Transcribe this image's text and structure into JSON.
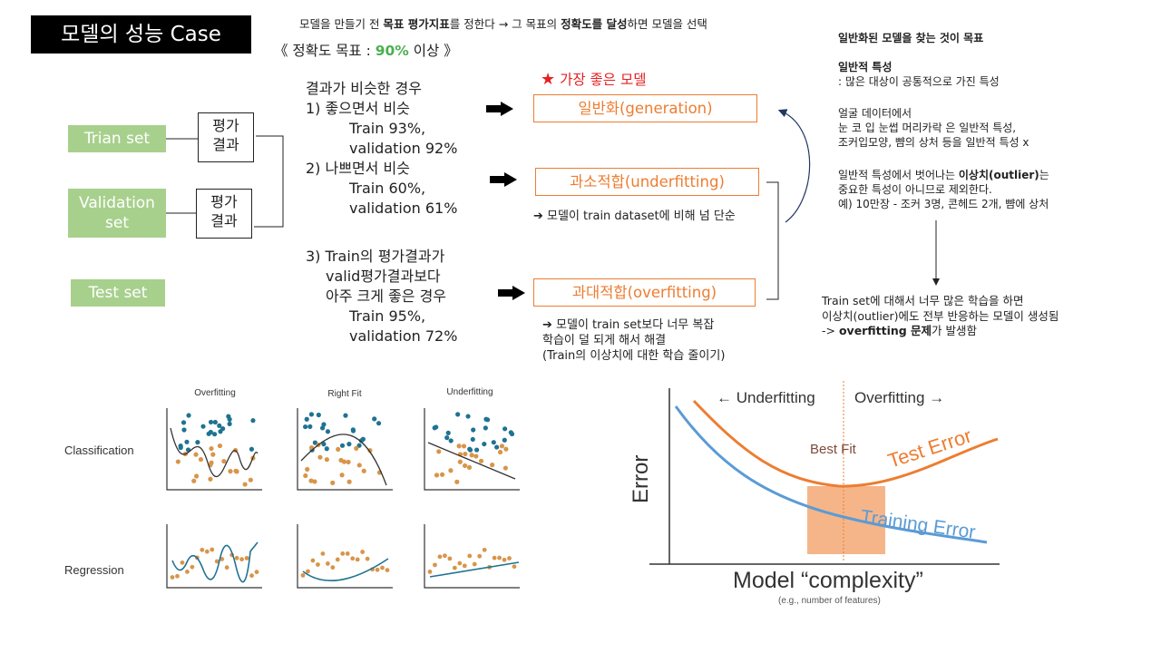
{
  "title": "모델의 성능 Case",
  "rule": {
    "p1": "모델을 만들기 전 ",
    "b1": "목표 평가지표",
    "p2": "를 정한다 → 그 목표의 ",
    "b2": "정확도를 달성",
    "p3": "하면 모델을 선택"
  },
  "target": {
    "open": "《 정확도 목표 : ",
    "pct": "90%",
    "close": " 이상 》"
  },
  "sets": {
    "train": "Trian set",
    "validation_1": "Validation",
    "validation_2": "set",
    "test": "Test set"
  },
  "eval_label_1": "평가",
  "eval_label_2": "결과",
  "cases": {
    "heading": "결과가 비슷한 경우",
    "c1": "1)     좋으면서 비슷",
    "c1_train": "Train 93%,",
    "c1_val": "validation 92%",
    "c2": "2)     나쁘면서 비슷",
    "c2_train": "Train 60%,",
    "c2_val": "validation 61%",
    "c3_1": "3) Train의 평가결과가",
    "c3_2": "valid평가결과보다",
    "c3_3": "아주 크게 좋은 경우",
    "c3_train": "Train 95%,",
    "c3_val": "validation 72%"
  },
  "best_label": "가장 좋은 모델",
  "models": {
    "general": "일반화(generation)",
    "under": "과소적합(underfitting)",
    "over": "과대적합(overfitting)"
  },
  "notes": {
    "under": "➔ 모델이 train dataset에 비해 넘 단순",
    "over_1": "➔ 모델이 train set보다 너무 복잡",
    "over_2": "학습이 덜 되게 해서 해결",
    "over_3": "(Train의 이상치에 대한 학습 줄이기)"
  },
  "right": {
    "goal": "일반화된 모델을 찾는 것이 목표",
    "gen_title": "일반적 특성",
    "gen_desc": ": 많은 대상이 공통적으로 가진 특성",
    "face_1": "얼굴 데이터에서",
    "face_2": "눈 코 입 눈썹 머리카락 은 일반적 특성,",
    "face_3": "조커입모양, 뺨의 상처 등을 일반적 특성 x",
    "out_1a": "일반적 특성에서 벗어나는 ",
    "out_1b": "이상치(outlier)",
    "out_1c": "는",
    "out_2": "중요한 특성이 아니므로 제외한다.",
    "out_3": "예) 10만장 - 조커 3명, 콘헤드 2개, 뺨에 상처",
    "res_1": "Train set에 대해서 너무 많은 학습을 하면",
    "res_2": " 이상치(outlier)에도 전부 반응하는 모델이 생성됨",
    "res_3a": "-> ",
    "res_3b": "overfitting 문제",
    "res_3c": "가 발생함"
  },
  "fits": {
    "col1": "Overfitting",
    "col2": "Right Fit",
    "col3": "Underfitting",
    "row1": "Classification",
    "row2": "Regression"
  },
  "error_chart": {
    "under": "← Underfitting",
    "over": "Overfitting →",
    "best_fit": "Best Fit",
    "test_error": "Test Error",
    "train_error": "Training Error",
    "ylabel": "Error",
    "xlabel": "Model “complexity”",
    "xsub": "(e.g., number of features)",
    "colors": {
      "test": "#ed7d31",
      "train": "#5b9bd5",
      "zone": "#f4b183"
    }
  }
}
